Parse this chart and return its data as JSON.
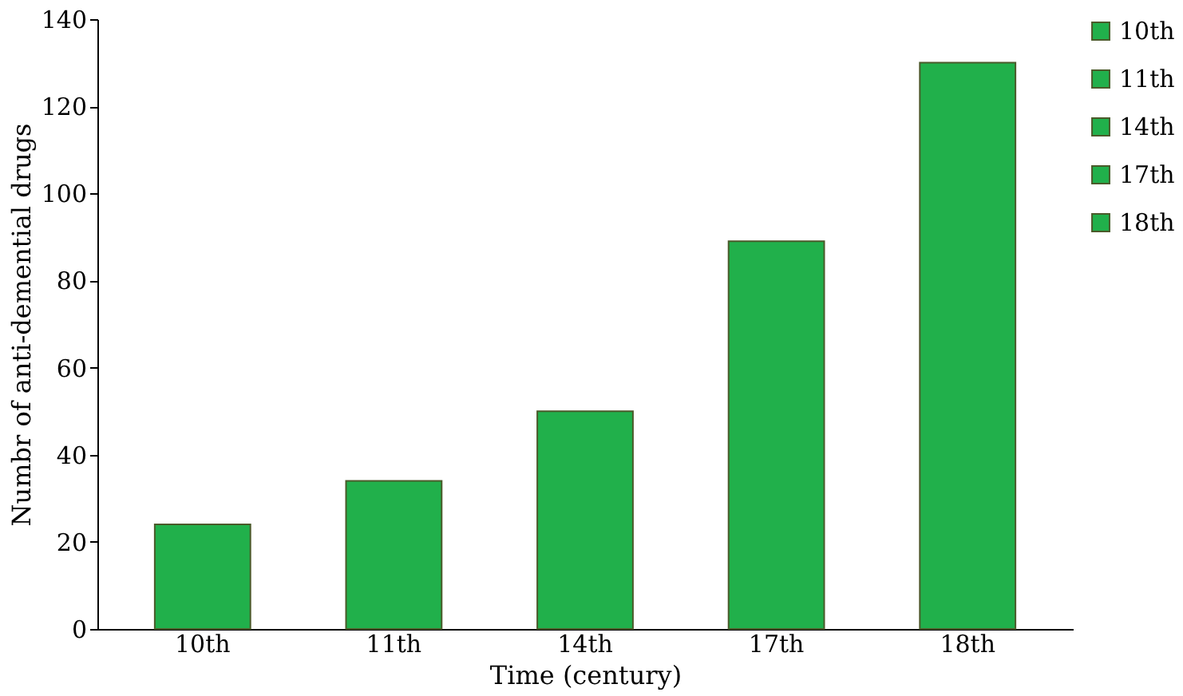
{
  "chart_data": {
    "type": "bar",
    "xlabel": "Time (century)",
    "ylabel": "Numbr of anti-demential drugs",
    "categories": [
      "10th",
      "11th",
      "14th",
      "17th",
      "18th"
    ],
    "series": [
      {
        "name": "10th",
        "color": "#21b04b",
        "values": [
          24,
          null,
          null,
          null,
          null
        ]
      },
      {
        "name": "11th",
        "color": "#21b04b",
        "values": [
          null,
          34,
          null,
          null,
          null
        ]
      },
      {
        "name": "14th",
        "color": "#21b04b",
        "values": [
          null,
          null,
          50,
          null,
          null
        ]
      },
      {
        "name": "17th",
        "color": "#21b04b",
        "values": [
          null,
          null,
          null,
          89,
          null
        ]
      },
      {
        "name": "18th",
        "color": "#21b04b",
        "values": [
          null,
          null,
          null,
          null,
          130
        ]
      }
    ],
    "ylim": [
      0,
      140
    ],
    "yticks": [
      0,
      20,
      40,
      60,
      80,
      100,
      120,
      140
    ],
    "grid": false,
    "legend": "right"
  }
}
